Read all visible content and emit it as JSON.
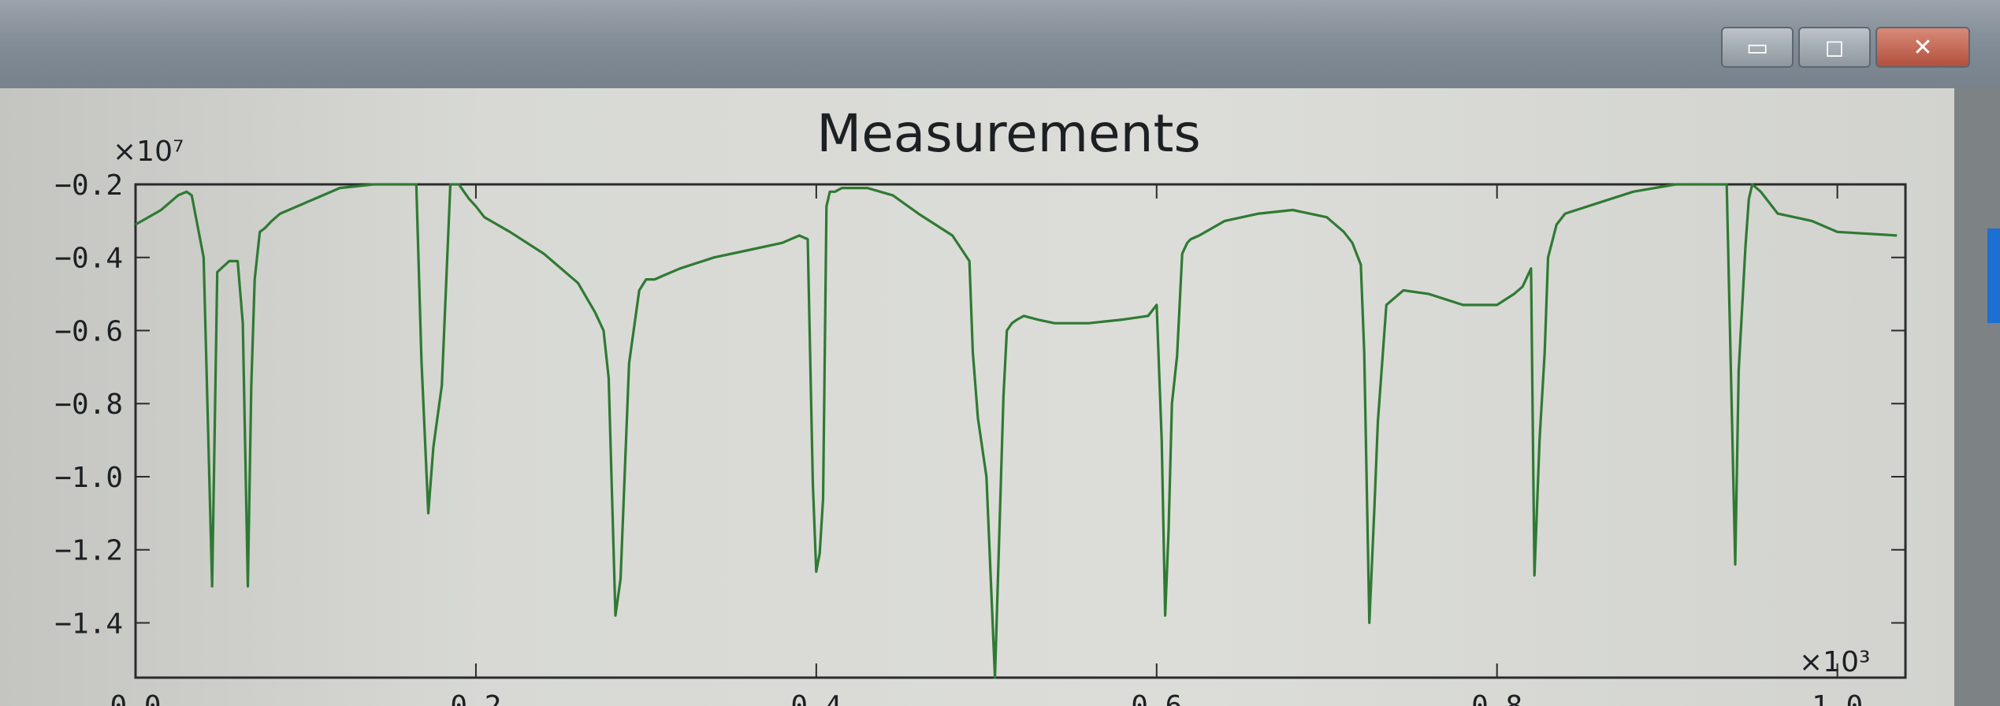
{
  "window": {
    "controls": [
      {
        "name": "minimize",
        "glyph": "▭"
      },
      {
        "name": "maximize",
        "glyph": "◻"
      },
      {
        "name": "close",
        "glyph": "✕"
      }
    ]
  },
  "chart_data": {
    "type": "line",
    "title": "Measurements",
    "xlabel": "",
    "ylabel": "",
    "x_offset_text": "×10³",
    "y_offset_text": "×10⁷",
    "x_ticks": [
      "0.0",
      "0.2",
      "0.4",
      "0.6",
      "0.8",
      "1.0"
    ],
    "x_tick_values": [
      0,
      200,
      400,
      600,
      800,
      1000
    ],
    "y_ticks": [
      "−0.2",
      "−0.4",
      "−0.6",
      "−0.8",
      "−1.0",
      "−1.2",
      "−1.4"
    ],
    "y_tick_values": [
      -2000000,
      -4000000,
      -6000000,
      -8000000,
      -10000000,
      -12000000,
      -14000000
    ],
    "xlim": [
      0,
      1040
    ],
    "ylim": [
      -15500000,
      -2000000
    ],
    "grid": false,
    "line_color": "#2f7a33",
    "series": [
      {
        "name": "",
        "x": [
          0,
          15,
          25,
          30,
          33,
          40,
          45,
          48,
          55,
          60,
          63,
          66,
          68,
          70,
          73,
          76,
          80,
          85,
          90,
          100,
          120,
          140,
          155,
          165,
          168,
          172,
          175,
          180,
          185,
          190,
          193,
          196,
          200,
          205,
          220,
          240,
          260,
          270,
          275,
          278,
          282,
          285,
          290,
          296,
          300,
          305,
          310,
          320,
          340,
          360,
          380,
          390,
          395,
          398,
          400,
          402,
          404,
          406,
          408,
          411,
          415,
          420,
          430,
          445,
          460,
          480,
          490,
          492,
          495,
          500,
          505,
          510,
          512,
          515,
          518,
          522,
          530,
          540,
          550,
          560,
          580,
          595,
          600,
          603,
          605,
          607,
          609,
          612,
          615,
          618,
          620,
          625,
          640,
          660,
          680,
          700,
          710,
          715,
          720,
          722,
          725,
          728,
          730,
          735,
          745,
          760,
          780,
          800,
          810,
          815,
          820,
          822,
          825,
          828,
          830,
          835,
          840,
          860,
          880,
          905,
          920,
          930,
          935,
          940,
          942,
          946,
          948,
          950,
          955,
          965,
          985,
          1000,
          1035
        ],
        "y": [
          -3100000,
          -2700000,
          -2300000,
          -2200000,
          -2300000,
          -4000000,
          -13000000,
          -4400000,
          -4100000,
          -4100000,
          -5800000,
          -13000000,
          -7500000,
          -4600000,
          -3300000,
          -3200000,
          -3000000,
          -2800000,
          -2700000,
          -2500000,
          -2100000,
          -2000000,
          -2000000,
          -2000000,
          -6800000,
          -11000000,
          -9200000,
          -7500000,
          -2000000,
          -2000000,
          -2200000,
          -2400000,
          -2600000,
          -2900000,
          -3300000,
          -3900000,
          -4700000,
          -5500000,
          -6000000,
          -7300000,
          -13800000,
          -12800000,
          -6900000,
          -4900000,
          -4600000,
          -4600000,
          -4500000,
          -4300000,
          -4000000,
          -3800000,
          -3600000,
          -3400000,
          -3500000,
          -10200000,
          -12600000,
          -12100000,
          -10600000,
          -2600000,
          -2200000,
          -2200000,
          -2100000,
          -2100000,
          -2100000,
          -2300000,
          -2800000,
          -3400000,
          -4100000,
          -6600000,
          -8400000,
          -10000000,
          -15500000,
          -7800000,
          -6000000,
          -5800000,
          -5700000,
          -5600000,
          -5700000,
          -5800000,
          -5800000,
          -5800000,
          -5700000,
          -5600000,
          -5300000,
          -9000000,
          -13800000,
          -11500000,
          -8000000,
          -6700000,
          -3900000,
          -3600000,
          -3500000,
          -3400000,
          -3000000,
          -2800000,
          -2700000,
          -2900000,
          -3300000,
          -3600000,
          -4200000,
          -6600000,
          -14000000,
          -10800000,
          -8500000,
          -5300000,
          -4900000,
          -5000000,
          -5300000,
          -5300000,
          -5000000,
          -4800000,
          -4300000,
          -12700000,
          -9000000,
          -6600000,
          -4000000,
          -3100000,
          -2800000,
          -2500000,
          -2200000,
          -1900000,
          -1900000,
          -1900000,
          -1900000,
          -12400000,
          -7100000,
          -3700000,
          -2400000,
          -2000000,
          -2200000,
          -2800000,
          -3000000,
          -3300000,
          -3400000
        ]
      }
    ]
  }
}
